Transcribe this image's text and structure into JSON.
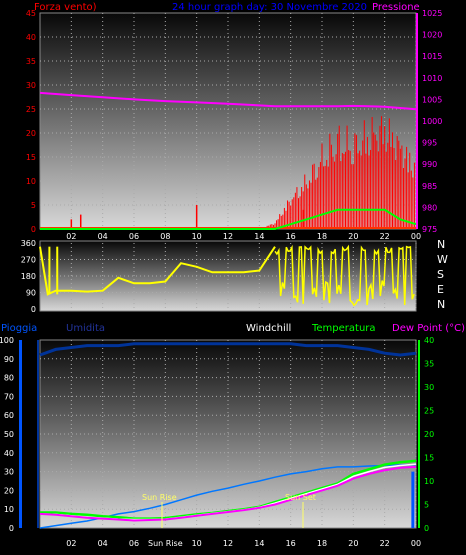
{
  "panel1": {
    "title_left": "Forza vento)",
    "title_center": "24 hour graph day:  30 Novembre 2020",
    "title_right": "Pressione",
    "left_ticks": [
      "0",
      "5",
      "10",
      "15",
      "20",
      "25",
      "30",
      "35",
      "40",
      "45"
    ],
    "right_ticks": [
      "975",
      "980",
      "985",
      "990",
      "995",
      "1000",
      "1005",
      "1010",
      "1015",
      "1020",
      "1025"
    ],
    "x_ticks": [
      "02",
      "04",
      "06",
      "08",
      "10",
      "12",
      "14",
      "16",
      "18",
      "20",
      "22",
      "00"
    ],
    "colors": {
      "wind": "#ff0000",
      "gust_line": "#00ff00",
      "pressure": "#ff00ff",
      "title_left": "#ff0000",
      "title_center": "#0000ff",
      "title_right": "#ff00ff"
    }
  },
  "panel2": {
    "left_ticks": [
      "0",
      "90",
      "180",
      "270",
      "360"
    ],
    "right_labels": [
      "N",
      "W",
      "S",
      "E",
      "N"
    ],
    "colors": {
      "direction": "#ffff00"
    }
  },
  "panel3": {
    "label_pioggia": "Pioggia",
    "label_umidita": "Umidita",
    "label_windchill": "Windchill",
    "label_temperatura": "Temperatura",
    "label_dewpoint": "Dew Point (°C)",
    "left_ticks": [
      "0",
      "10",
      "20",
      "30",
      "40",
      "50",
      "60",
      "70",
      "80",
      "90",
      "100"
    ],
    "right_ticks": [
      "0",
      "5",
      "10",
      "15",
      "20",
      "25",
      "30",
      "35",
      "40"
    ],
    "x_ticks": [
      "02",
      "04",
      "06",
      "Sun Rise",
      "10",
      "12",
      "14",
      "16",
      "18",
      "20",
      "22",
      "00"
    ],
    "sunrise_label": "Sun Rise",
    "sunset_label": "Sun Set",
    "colors": {
      "pioggia": "#0055ff",
      "umidita": "#003399",
      "windchill": "#ffffff",
      "temperatura": "#00ff00",
      "dewpoint": "#ff00ff"
    }
  },
  "chart_data": [
    {
      "type": "line",
      "title": "24 hour graph day:  30 Novembre 2020",
      "x": [
        0,
        2,
        4,
        6,
        8,
        10,
        12,
        14,
        15,
        16,
        17,
        18,
        19,
        20,
        21,
        22,
        23,
        24
      ],
      "series": [
        {
          "name": "Forza vento)",
          "axis": "left",
          "values": [
            0,
            0,
            0,
            0,
            0,
            0,
            0,
            0,
            1,
            5,
            8,
            12,
            15,
            14,
            16,
            17,
            14,
            10
          ]
        },
        {
          "name": "Pressione",
          "axis": "right",
          "values": [
            1006.5,
            1006,
            1005.5,
            1005,
            1004.6,
            1004.3,
            1004,
            1003.6,
            1003.4,
            1003.4,
            1003.4,
            1003.4,
            1003.4,
            1003.5,
            1003.4,
            1003.3,
            1003,
            1002.7
          ]
        },
        {
          "axis": "left",
          "values": [
            0,
            0,
            0,
            0,
            0,
            0,
            0,
            0,
            0,
            1,
            2,
            3,
            4,
            4,
            4,
            4,
            2,
            1
          ]
        }
      ],
      "ylim_left": [
        0,
        45
      ],
      "ylim_right": [
        975,
        1025
      ]
    },
    {
      "type": "line",
      "x": [
        0,
        0.5,
        1,
        2,
        3,
        4,
        5,
        6,
        7,
        8,
        9,
        10,
        11,
        12,
        13,
        14,
        15,
        16,
        17,
        18,
        19,
        20,
        21,
        22,
        23,
        24
      ],
      "series": [
        {
          "axis": "left",
          "values": [
            340,
            80,
            100,
            100,
            95,
            100,
            170,
            140,
            140,
            150,
            250,
            230,
            200,
            200,
            200,
            210,
            340,
            80,
            340,
            100,
            340,
            320,
            100,
            330,
            330,
            330
          ]
        }
      ],
      "ylim": [
        0,
        360
      ]
    },
    {
      "type": "line",
      "x": [
        0,
        1,
        2,
        3,
        4,
        5,
        6,
        7,
        8,
        9,
        10,
        11,
        12,
        13,
        14,
        15,
        16,
        17,
        18,
        19,
        20,
        21,
        22,
        23,
        24
      ],
      "series": [
        {
          "name": "Umidita",
          "axis": "left",
          "values": [
            92,
            95,
            96,
            97,
            97,
            97,
            98,
            98,
            98,
            98,
            98,
            98,
            98,
            98,
            98,
            98,
            98,
            97,
            97,
            97,
            96,
            95,
            93,
            92,
            93
          ]
        },
        {
          "name": "Pioggia",
          "axis": "left",
          "values": [
            0,
            0,
            0,
            0,
            0,
            0,
            0,
            0,
            0,
            0,
            0,
            0,
            0,
            0,
            0,
            0,
            0,
            0,
            0,
            0,
            0,
            0,
            0,
            0,
            30
          ]
        },
        {
          "name": "Temperatura",
          "axis": "right",
          "values": [
            3.3,
            3.3,
            3.0,
            2.8,
            2.5,
            2.3,
            2.0,
            2.0,
            2.1,
            2.5,
            2.9,
            3.2,
            3.6,
            4.0,
            4.5,
            5.5,
            6.5,
            7.5,
            8.5,
            9.5,
            11.5,
            12.5,
            13.5,
            14.0,
            14.3
          ]
        },
        {
          "name": "Dew Point (°C)",
          "axis": "right",
          "values": [
            3.0,
            2.8,
            2.5,
            2.2,
            2.0,
            1.8,
            1.6,
            1.7,
            1.8,
            2.2,
            2.6,
            3.0,
            3.4,
            3.8,
            4.3,
            5.0,
            6.0,
            7.0,
            8.0,
            9.0,
            10.5,
            11.5,
            12.3,
            12.8,
            13.0
          ]
        },
        {
          "name": "Windchill",
          "axis": "right",
          "values": [
            3.0,
            2.9,
            2.6,
            2.3,
            2.1,
            1.9,
            1.8,
            1.8,
            1.9,
            2.3,
            2.7,
            3.1,
            3.5,
            3.9,
            4.4,
            5.3,
            6.3,
            7.3,
            8.3,
            9.3,
            11.0,
            12.0,
            12.9,
            13.3,
            13.6
          ]
        },
        {
          "axis": "right",
          "values": [
            0,
            0.5,
            1.0,
            1.5,
            2.2,
            3.0,
            3.5,
            4.2,
            5.0,
            6.0,
            7.0,
            7.8,
            8.5,
            9.3,
            10.0,
            10.8,
            11.5,
            12.0,
            12.6,
            13.0,
            13.0,
            13.2,
            13.3,
            13.4,
            13.5
          ]
        }
      ],
      "ylim_left": [
        0,
        100
      ],
      "ylim_right": [
        0,
        40
      ],
      "annotations": [
        "Sun Rise",
        "Sun Set"
      ]
    }
  ]
}
